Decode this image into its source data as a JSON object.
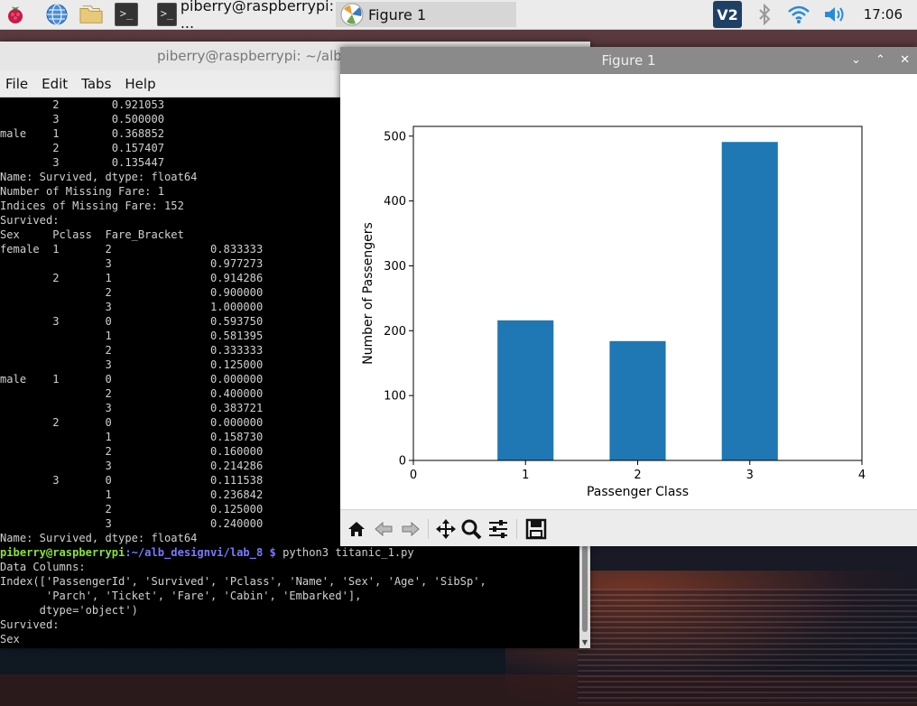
{
  "taskbar": {
    "tasks": [
      {
        "label": "piberry@raspberrypi: ...",
        "active": false
      },
      {
        "label": "Figure 1",
        "active": true
      }
    ],
    "clock": "17:06",
    "icons": [
      "raspberry-menu-icon",
      "web-browser-icon",
      "file-manager-icon",
      "terminal-icon",
      "vnc-icon",
      "bluetooth-icon",
      "wifi-icon",
      "volume-icon"
    ]
  },
  "terminal": {
    "title": "piberry@raspberrypi: ~/alb_d",
    "menu": [
      "File",
      "Edit",
      "Tabs",
      "Help"
    ],
    "lines": [
      "        2        0.921053",
      "        3        0.500000",
      "male    1        0.368852",
      "        2        0.157407",
      "        3        0.135447",
      "Name: Survived, dtype: float64",
      "Number of Missing Fare: 1",
      "Indices of Missing Fare: 152",
      "Survived:",
      "Sex     Pclass  Fare_Bracket",
      "female  1       2               0.833333",
      "                3               0.977273",
      "        2       1               0.914286",
      "                2               0.900000",
      "                3               1.000000",
      "        3       0               0.593750",
      "                1               0.581395",
      "                2               0.333333",
      "                3               0.125000",
      "male    1       0               0.000000",
      "                2               0.400000",
      "                3               0.383721",
      "        2       0               0.000000",
      "                1               0.158730",
      "                2               0.160000",
      "                3               0.214286",
      "        3       0               0.111538",
      "                1               0.236842",
      "                2               0.125000",
      "                3               0.240000",
      "Name: Survived, dtype: float64"
    ],
    "prompt": {
      "user": "piberry@raspberrypi",
      "path": ":~/alb_designvi/lab_8 $",
      "command": " python3 titanic_1.py"
    },
    "after_lines": [
      "Data Columns:",
      "Index(['PassengerId', 'Survived', 'Pclass', 'Name', 'Sex', 'Age', 'SibSp',",
      "       'Parch', 'Ticket', 'Fare', 'Cabin', 'Embarked'],",
      "      dtype='object')",
      "Survived:",
      "Sex"
    ]
  },
  "figure": {
    "title": "Figure 1",
    "window_controls": [
      "⌄",
      "⌃",
      "✕"
    ],
    "toolbar": [
      "home-icon",
      "back-icon",
      "forward-icon",
      "pan-icon",
      "zoom-icon",
      "configure-subplots-icon",
      "save-icon"
    ]
  },
  "chart_data": {
    "type": "bar",
    "x": [
      1,
      2,
      3
    ],
    "values": [
      216,
      184,
      491
    ],
    "xlabel": "Passenger Class",
    "ylabel": "Number of Passengers",
    "xlim": [
      0,
      4
    ],
    "ylim": [
      0,
      515
    ],
    "xticks": [
      0,
      1,
      2,
      3,
      4
    ],
    "yticks": [
      0,
      100,
      200,
      300,
      400,
      500
    ],
    "bar_color": "#1f77b4",
    "grid": false
  }
}
